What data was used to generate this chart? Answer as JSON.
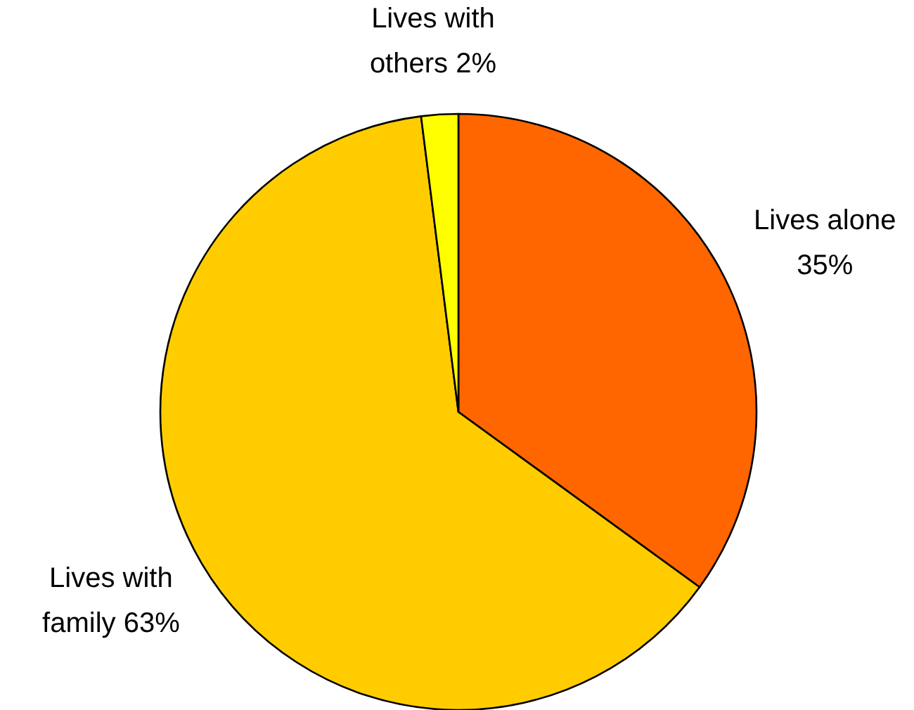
{
  "chart_data": {
    "type": "pie",
    "categories": [
      "Lives alone",
      "Lives with family",
      "Lives with others"
    ],
    "values": [
      35,
      63,
      2
    ],
    "colors": [
      "#ff6600",
      "#ffcc00",
      "#ffff00"
    ],
    "value_labels": [
      "35%",
      "63%",
      "2%"
    ]
  }
}
